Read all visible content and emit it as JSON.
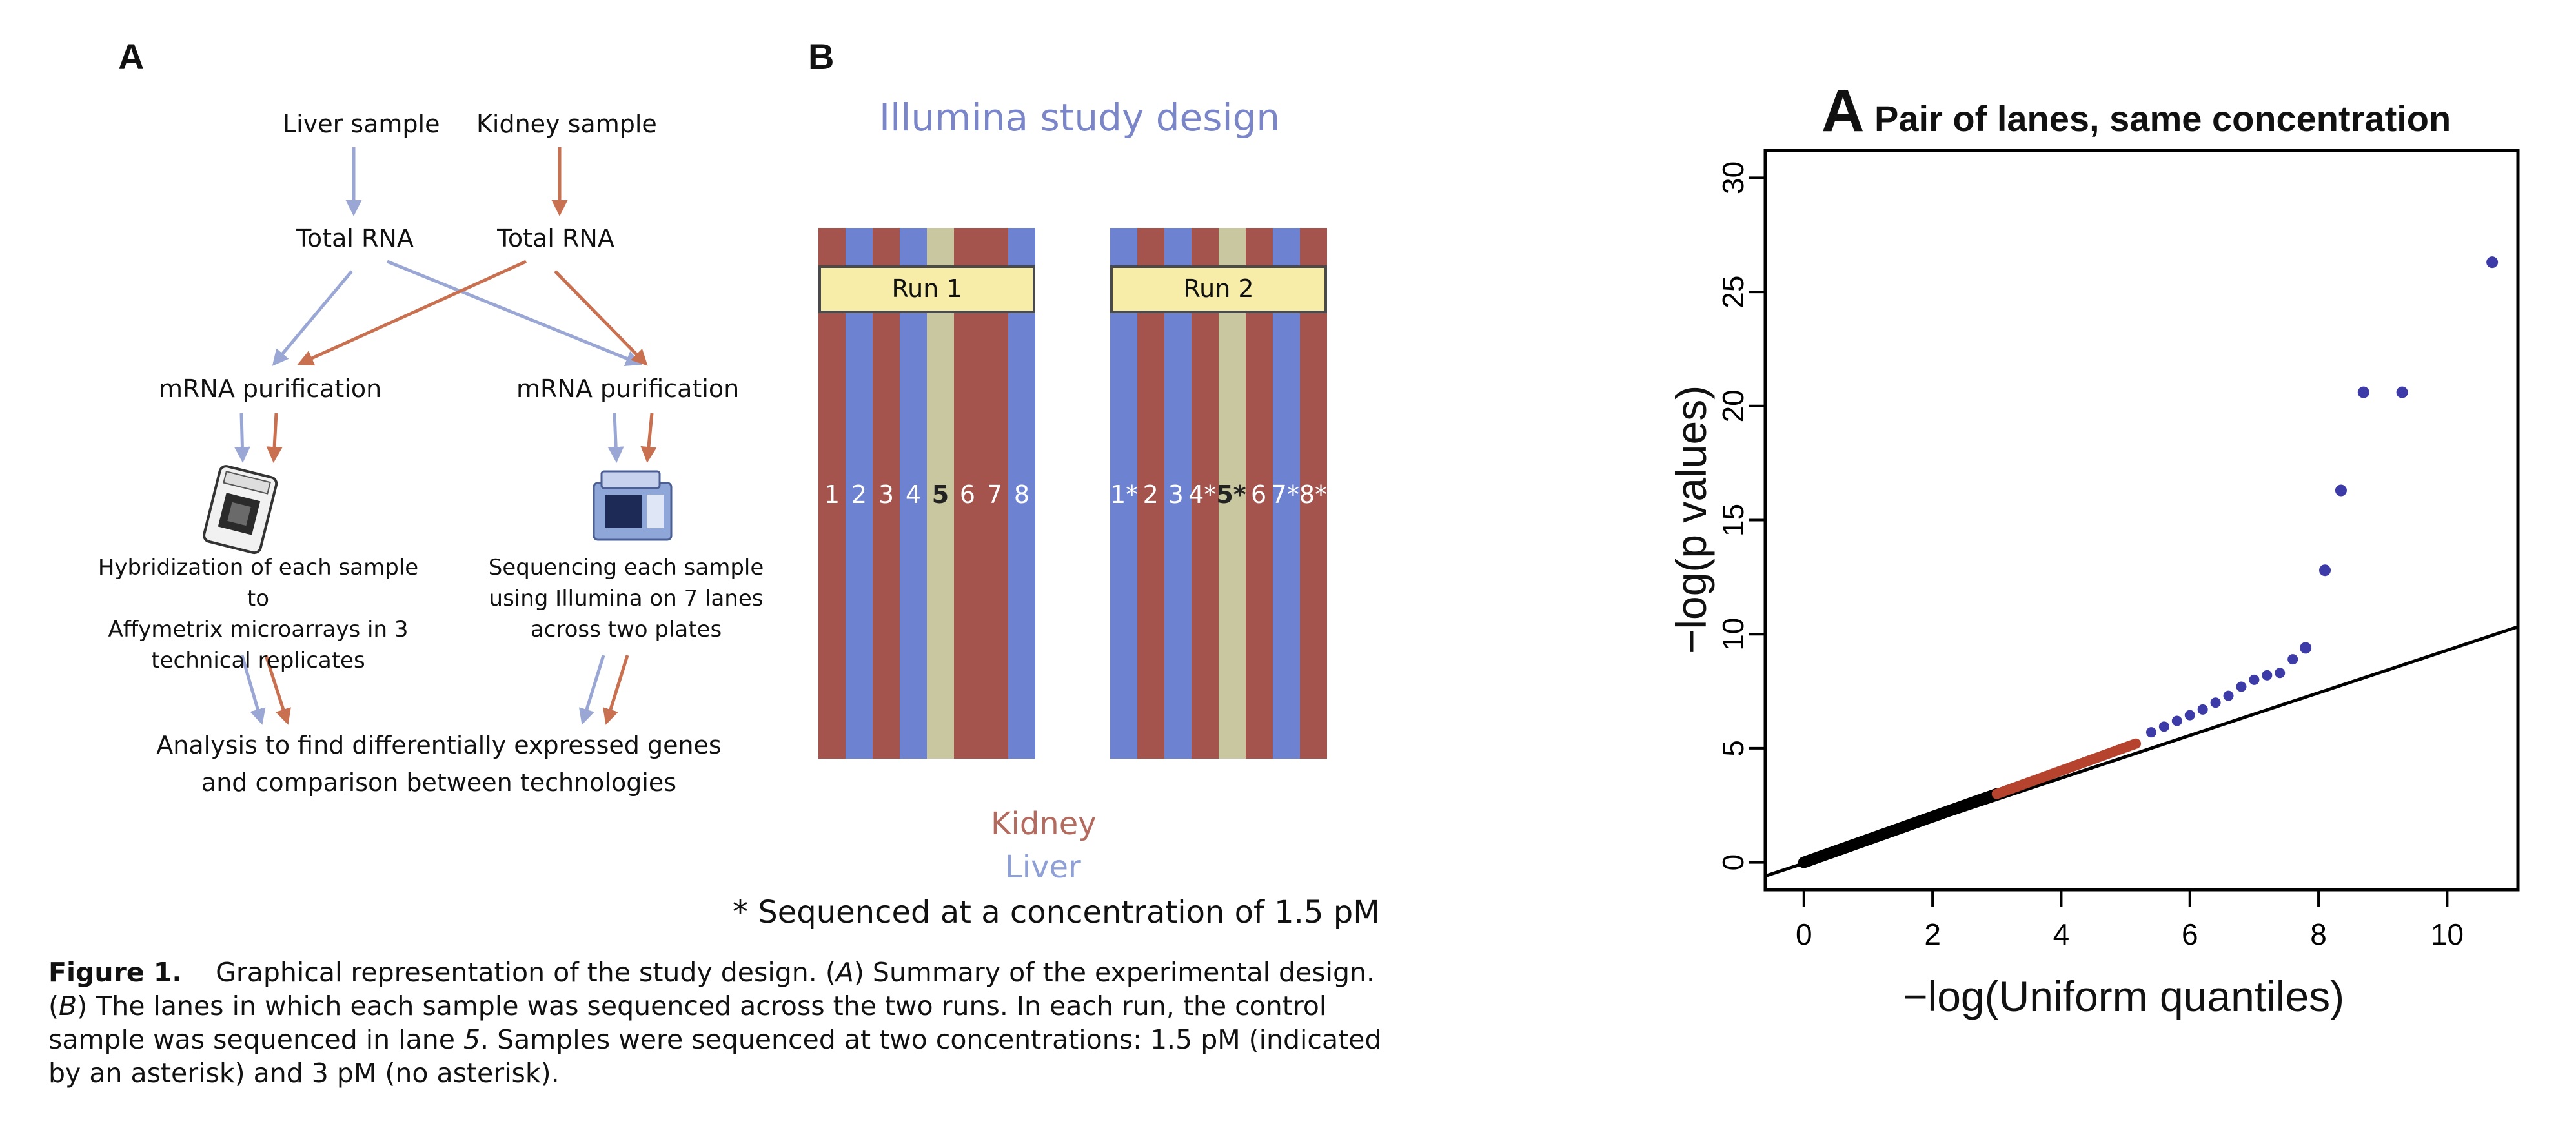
{
  "panel_a_left": {
    "letter": "A",
    "liver_sample": "Liver sample",
    "kidney_sample": "Kidney sample",
    "total_rna_left": "Total RNA",
    "total_rna_right": "Total RNA",
    "mrna_left": "mRNA purification",
    "mrna_right": "mRNA purification",
    "hybridization": [
      "Hybridization of each sample to",
      "Affymetrix microarrays in 3",
      "technical replicates"
    ],
    "sequencing": [
      "Sequencing each sample",
      "using Illumina on 7 lanes",
      "across two plates"
    ],
    "analysis": [
      "Analysis to find differentially expressed genes",
      "and comparison between technologies"
    ],
    "colors": {
      "liver": "#9aa7d4",
      "kidney": "#c8704f"
    }
  },
  "panel_b": {
    "letter": "B",
    "title": "Illumina study design",
    "run1_label": "Run 1",
    "run2_label": "Run 2",
    "run1_lanes": [
      "1",
      "2",
      "3",
      "4",
      "5",
      "6",
      "7",
      "8"
    ],
    "run2_lanes": [
      "1*",
      "2",
      "3",
      "4*",
      "5*",
      "6",
      "7*",
      "8*"
    ],
    "legend_kidney": "Kidney",
    "legend_liver": "Liver",
    "footnote": "* Sequenced at a concentration of 1.5 pM",
    "colors": {
      "kidney": "#a4544c",
      "liver": "#6e82d2",
      "control": "#c8c7a0"
    }
  },
  "caption": {
    "label": "Figure 1.",
    "text_1": "Graphical representation of the study design. (",
    "A": "A",
    "text_2": ") Summary of the experimental design. (",
    "B": "B",
    "text_3": ") The lanes in which each sample was sequenced across the two runs. In each run, the control sample was sequenced in lane ",
    "lane": "5",
    "text_4": ". Samples were sequenced at two concentrations: 1.5 pM (indicated by an asterisk) and 3 pM (no asterisk)."
  },
  "chart_data": {
    "type": "scatter",
    "title_letter": "A",
    "title": "Pair of lanes, same concentration",
    "xlabel": "−log(Uniform quantiles)",
    "ylabel": "−log(p values)",
    "xlim": [
      -0.6,
      11.1
    ],
    "ylim": [
      -1.2,
      31.2
    ],
    "xticks": [
      "0",
      "2",
      "4",
      "6",
      "8",
      "10"
    ],
    "yticks": [
      "0",
      "5",
      "10",
      "15",
      "20",
      "25",
      "30"
    ],
    "reference_line": {
      "slope": 1,
      "intercept": 0,
      "extent": [
        -0.6,
        11.1
      ]
    },
    "series": [
      {
        "name": "black",
        "color": "#000000",
        "x_range": [
          0,
          3
        ],
        "slope": 1.0,
        "note": "dense continuous points"
      },
      {
        "name": "red",
        "color": "#b5432e",
        "x_range": [
          3,
          5.2
        ],
        "slope": 1.0
      },
      {
        "name": "blue",
        "color": "#3d3ba8",
        "x_range": [
          5.2,
          7.6
        ]
      }
    ],
    "outliers": [
      {
        "x": 7.8,
        "y": 9.4
      },
      {
        "x": 8.1,
        "y": 12.8
      },
      {
        "x": 8.35,
        "y": 16.3
      },
      {
        "x": 8.7,
        "y": 20.6
      },
      {
        "x": 9.3,
        "y": 20.6
      },
      {
        "x": 10.7,
        "y": 26.3
      }
    ],
    "blue_tail": [
      {
        "x": 5.4,
        "y": 5.7
      },
      {
        "x": 5.6,
        "y": 5.95
      },
      {
        "x": 5.8,
        "y": 6.2
      },
      {
        "x": 6.0,
        "y": 6.45
      },
      {
        "x": 6.2,
        "y": 6.7
      },
      {
        "x": 6.4,
        "y": 7.0
      },
      {
        "x": 6.6,
        "y": 7.3
      },
      {
        "x": 6.8,
        "y": 7.7
      },
      {
        "x": 7.0,
        "y": 8.0
      },
      {
        "x": 7.2,
        "y": 8.2
      },
      {
        "x": 7.4,
        "y": 8.3
      },
      {
        "x": 7.6,
        "y": 8.9
      }
    ]
  }
}
